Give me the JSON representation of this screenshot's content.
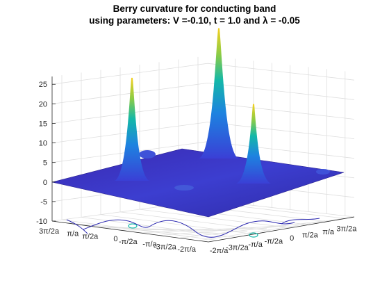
{
  "chart_data": {
    "type": "surface",
    "title": [
      "Berry curvature for conducting band",
      "using parameters: V =-0.10, t = 1.0 and λ = -0.05"
    ],
    "xlabel": "",
    "ylabel": "",
    "zlabel": "",
    "zlim": [
      -10,
      27
    ],
    "z_ticks": [
      "25",
      "20",
      "15",
      "10",
      "5",
      "0",
      "-5",
      "-10"
    ],
    "x_ticks": [
      "3π/2a",
      "π/a",
      "π/2a",
      "0",
      "-π/2a",
      "-π/a",
      "-3π/2a",
      "-2π/a"
    ],
    "y_ticks": [
      "-2π/a",
      "-3π/2a",
      "-π/a",
      "-π/2a",
      "0",
      "π/2a",
      "π/a",
      "3π/2a"
    ],
    "grid": true,
    "colormap": "parula",
    "baseline_value": 0,
    "peaks": [
      {
        "name": "peak-left",
        "height": 26
      },
      {
        "name": "peak-center",
        "height": 33
      },
      {
        "name": "peak-right",
        "height": 20
      }
    ],
    "contour_projection_level": -10
  }
}
